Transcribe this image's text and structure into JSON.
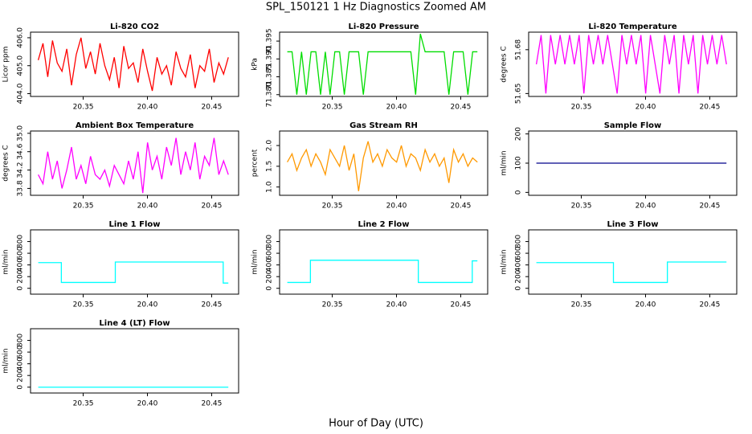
{
  "title": "SPL_150121  1 Hz Diagnostics Zoomed AM",
  "xlabel": "Hour of Day (UTC)",
  "chart_data": [
    {
      "type": "line",
      "title": "Li-820 CO2",
      "ylabel": "Licor ppm",
      "color": "#ff0000",
      "x": [
        20.315,
        20.3187,
        20.3224,
        20.3261,
        20.3298,
        20.3335,
        20.3372,
        20.3409,
        20.3446,
        20.3483,
        20.352,
        20.3557,
        20.3594,
        20.3631,
        20.3668,
        20.3705,
        20.3742,
        20.3779,
        20.3816,
        20.3853,
        20.389,
        20.3927,
        20.3964,
        20.4001,
        20.4038,
        20.4075,
        20.4112,
        20.4149,
        20.4186,
        20.4223,
        20.426,
        20.4297,
        20.4334,
        20.4371,
        20.4408,
        20.4445,
        20.4482,
        20.4519,
        20.4556,
        20.4593,
        20.463
      ],
      "values": [
        405.2,
        405.8,
        404.6,
        405.9,
        405.1,
        404.8,
        405.6,
        404.3,
        405.4,
        406.0,
        404.9,
        405.5,
        404.7,
        405.8,
        405.0,
        404.5,
        405.3,
        404.2,
        405.7,
        404.9,
        405.1,
        404.4,
        405.6,
        404.8,
        404.1,
        405.3,
        404.7,
        405.0,
        404.3,
        405.5,
        404.9,
        404.6,
        405.4,
        404.2,
        405.0,
        404.8,
        405.6,
        404.4,
        405.1,
        404.7,
        405.3
      ],
      "xlim": [
        20.309,
        20.471
      ],
      "xticks": [
        20.35,
        {
          "value": 20.4,
          "label": "20.40"
        },
        20.45
      ],
      "ylim": [
        403.9,
        406.2
      ],
      "yticks": [
        {
          "value": 404,
          "label": "404.0"
        },
        {
          "value": 405,
          "label": "405.0"
        },
        {
          "value": 406,
          "label": "406.0"
        }
      ]
    },
    {
      "type": "line",
      "title": "Li-820 Pressure",
      "ylabel": "kPa",
      "color": "#00dd00",
      "x": [
        20.315,
        20.3187,
        20.3224,
        20.3261,
        20.3298,
        20.3335,
        20.3372,
        20.3409,
        20.3446,
        20.3483,
        20.352,
        20.3557,
        20.3594,
        20.3631,
        20.3668,
        20.3705,
        20.3742,
        20.3779,
        20.3816,
        20.3853,
        20.389,
        20.3927,
        20.3964,
        20.4001,
        20.4038,
        20.4075,
        20.4112,
        20.4149,
        20.4186,
        20.4223,
        20.426,
        20.4297,
        20.4334,
        20.4371,
        20.4408,
        20.4445,
        20.4482,
        20.4519,
        20.4556,
        20.4593,
        20.463
      ],
      "values": [
        71.392,
        71.392,
        71.38,
        71.392,
        71.38,
        71.392,
        71.392,
        71.38,
        71.392,
        71.38,
        71.392,
        71.392,
        71.38,
        71.392,
        71.392,
        71.392,
        71.38,
        71.392,
        71.392,
        71.392,
        71.392,
        71.392,
        71.392,
        71.392,
        71.392,
        71.392,
        71.392,
        71.38,
        71.397,
        71.392,
        71.392,
        71.392,
        71.392,
        71.392,
        71.38,
        71.392,
        71.392,
        71.392,
        71.38,
        71.392,
        71.392
      ],
      "xlim": [
        20.309,
        20.471
      ],
      "xticks": [
        20.35,
        {
          "value": 20.4,
          "label": "20.40"
        },
        20.45
      ],
      "ylim": [
        71.3795,
        71.3975
      ],
      "yticks": [
        {
          "value": 71.38,
          "label": "71.380"
        },
        71.385,
        {
          "value": 71.39,
          "label": "71.390"
        },
        71.395
      ]
    },
    {
      "type": "line",
      "title": "Li-820 Temperature",
      "ylabel": "degrees C",
      "color": "#ff00ff",
      "x": [
        20.315,
        20.3187,
        20.3224,
        20.3261,
        20.3298,
        20.3335,
        20.3372,
        20.3409,
        20.3446,
        20.3483,
        20.352,
        20.3557,
        20.3594,
        20.3631,
        20.3668,
        20.3705,
        20.3742,
        20.3779,
        20.3816,
        20.3853,
        20.389,
        20.3927,
        20.3964,
        20.4001,
        20.4038,
        20.4075,
        20.4112,
        20.4149,
        20.4186,
        20.4223,
        20.426,
        20.4297,
        20.4334,
        20.4371,
        20.4408,
        20.4445,
        20.4482,
        20.4519,
        20.4556,
        20.4593,
        20.463
      ],
      "values": [
        51.67,
        51.69,
        51.65,
        51.69,
        51.67,
        51.69,
        51.67,
        51.69,
        51.67,
        51.69,
        51.65,
        51.69,
        51.67,
        51.69,
        51.67,
        51.69,
        51.67,
        51.65,
        51.69,
        51.67,
        51.69,
        51.67,
        51.69,
        51.65,
        51.69,
        51.67,
        51.65,
        51.69,
        51.67,
        51.69,
        51.65,
        51.69,
        51.67,
        51.69,
        51.65,
        51.69,
        51.67,
        51.69,
        51.67,
        51.69,
        51.67
      ],
      "xlim": [
        20.309,
        20.471
      ],
      "xticks": [
        20.35,
        {
          "value": 20.4,
          "label": "20.40"
        },
        20.45
      ],
      "ylim": [
        51.648,
        51.692
      ],
      "yticks": [
        51.65,
        51.68
      ]
    },
    {
      "type": "line",
      "title": "Ambient Box Temperature",
      "ylabel": "degrees C",
      "color": "#ff00ff",
      "x": [
        20.315,
        20.3187,
        20.3224,
        20.3261,
        20.3298,
        20.3335,
        20.3372,
        20.3409,
        20.3446,
        20.3483,
        20.352,
        20.3557,
        20.3594,
        20.3631,
        20.3668,
        20.3705,
        20.3742,
        20.3779,
        20.3816,
        20.3853,
        20.389,
        20.3927,
        20.3964,
        20.4001,
        20.4038,
        20.4075,
        20.4112,
        20.4149,
        20.4186,
        20.4223,
        20.426,
        20.4297,
        20.4334,
        20.4371,
        20.4408,
        20.4445,
        20.4482,
        20.4519,
        20.4556,
        20.4593,
        20.463
      ],
      "values": [
        34.1,
        33.9,
        34.6,
        34.0,
        34.4,
        33.8,
        34.2,
        34.7,
        34.0,
        34.3,
        33.9,
        34.5,
        34.1,
        34.0,
        34.2,
        33.85,
        34.3,
        34.1,
        33.9,
        34.4,
        34.0,
        34.6,
        33.7,
        34.8,
        34.2,
        34.5,
        34.0,
        34.7,
        34.3,
        34.9,
        34.1,
        34.6,
        34.2,
        34.8,
        34.0,
        34.5,
        34.3,
        34.9,
        34.1,
        34.4,
        34.1
      ],
      "xlim": [
        20.309,
        20.471
      ],
      "xticks": [
        20.35,
        {
          "value": 20.4,
          "label": "20.40"
        },
        20.45
      ],
      "ylim": [
        33.65,
        35.05
      ],
      "yticks": [
        33.8,
        34.2,
        34.6,
        {
          "value": 35,
          "label": "35.0"
        }
      ]
    },
    {
      "type": "line",
      "title": "Gas Stream RH",
      "ylabel": "percent",
      "color": "#ff9900",
      "x": [
        20.315,
        20.3187,
        20.3224,
        20.3261,
        20.3298,
        20.3335,
        20.3372,
        20.3409,
        20.3446,
        20.3483,
        20.352,
        20.3557,
        20.3594,
        20.3631,
        20.3668,
        20.3705,
        20.3742,
        20.3779,
        20.3816,
        20.3853,
        20.389,
        20.3927,
        20.3964,
        20.4001,
        20.4038,
        20.4075,
        20.4112,
        20.4149,
        20.4186,
        20.4223,
        20.426,
        20.4297,
        20.4334,
        20.4371,
        20.4408,
        20.4445,
        20.4482,
        20.4519,
        20.4556,
        20.4593,
        20.463
      ],
      "values": [
        1.6,
        1.8,
        1.4,
        1.7,
        1.9,
        1.5,
        1.8,
        1.6,
        1.3,
        1.9,
        1.7,
        1.5,
        2.0,
        1.4,
        1.8,
        0.9,
        1.7,
        2.1,
        1.6,
        1.8,
        1.5,
        1.9,
        1.7,
        1.6,
        2.0,
        1.5,
        1.8,
        1.7,
        1.4,
        1.9,
        1.6,
        1.8,
        1.5,
        1.7,
        1.1,
        1.9,
        1.6,
        1.8,
        1.5,
        1.7,
        1.6
      ],
      "xlim": [
        20.309,
        20.471
      ],
      "xticks": [
        20.35,
        {
          "value": 20.4,
          "label": "20.40"
        },
        20.45
      ],
      "ylim": [
        0.8,
        2.35
      ],
      "yticks": [
        {
          "value": 1,
          "label": "1.0"
        },
        1.5,
        {
          "value": 2,
          "label": "2.0"
        }
      ]
    },
    {
      "type": "line",
      "title": "Sample Flow",
      "ylabel": "ml/min",
      "color": "#00008b",
      "x": [
        20.315,
        20.463
      ],
      "values": [
        100,
        100
      ],
      "xlim": [
        20.309,
        20.471
      ],
      "xticks": [
        20.35,
        {
          "value": 20.4,
          "label": "20.40"
        },
        20.45
      ],
      "ylim": [
        -10,
        210
      ],
      "yticks": [
        0,
        100,
        200
      ]
    },
    {
      "type": "line",
      "title": "Line 1 Flow",
      "ylabel": "ml/min",
      "color": "#00ffff",
      "x": [
        20.315,
        20.333,
        20.333,
        20.375,
        20.375,
        20.459,
        20.459,
        20.463
      ],
      "values": [
        440,
        440,
        100,
        100,
        450,
        450,
        90,
        90
      ],
      "xlim": [
        20.309,
        20.471
      ],
      "xticks": [
        20.35,
        {
          "value": 20.4,
          "label": "20.40"
        },
        20.45
      ],
      "ylim": [
        -100,
        1000
      ],
      "yticks": [
        0,
        200,
        400,
        600,
        800
      ]
    },
    {
      "type": "line",
      "title": "Line 2 Flow",
      "ylabel": "ml/min",
      "color": "#00ffff",
      "x": [
        20.315,
        20.333,
        20.333,
        20.417,
        20.417,
        20.459,
        20.459,
        20.463
      ],
      "values": [
        100,
        100,
        480,
        480,
        100,
        100,
        470,
        470
      ],
      "xlim": [
        20.309,
        20.471
      ],
      "xticks": [
        20.35,
        {
          "value": 20.4,
          "label": "20.40"
        },
        20.45
      ],
      "ylim": [
        -100,
        1000
      ],
      "yticks": [
        0,
        200,
        400,
        600,
        800
      ]
    },
    {
      "type": "line",
      "title": "Line 3 Flow",
      "ylabel": "ml/min",
      "color": "#00ffff",
      "x": [
        20.315,
        20.375,
        20.375,
        20.417,
        20.417,
        20.463
      ],
      "values": [
        440,
        440,
        100,
        100,
        450,
        450
      ],
      "xlim": [
        20.309,
        20.471
      ],
      "xticks": [
        20.35,
        {
          "value": 20.4,
          "label": "20.40"
        },
        20.45
      ],
      "ylim": [
        -100,
        1000
      ],
      "yticks": [
        0,
        200,
        400,
        600,
        800
      ]
    },
    {
      "type": "line",
      "title": "Line 4 (LT) Flow",
      "ylabel": "ml/min",
      "color": "#00ffff",
      "x": [
        20.315,
        20.463
      ],
      "values": [
        0,
        0
      ],
      "xlim": [
        20.309,
        20.471
      ],
      "xticks": [
        20.35,
        {
          "value": 20.4,
          "label": "20.40"
        },
        20.45
      ],
      "ylim": [
        -100,
        1000
      ],
      "yticks": [
        0,
        200,
        400,
        600,
        800
      ]
    }
  ]
}
